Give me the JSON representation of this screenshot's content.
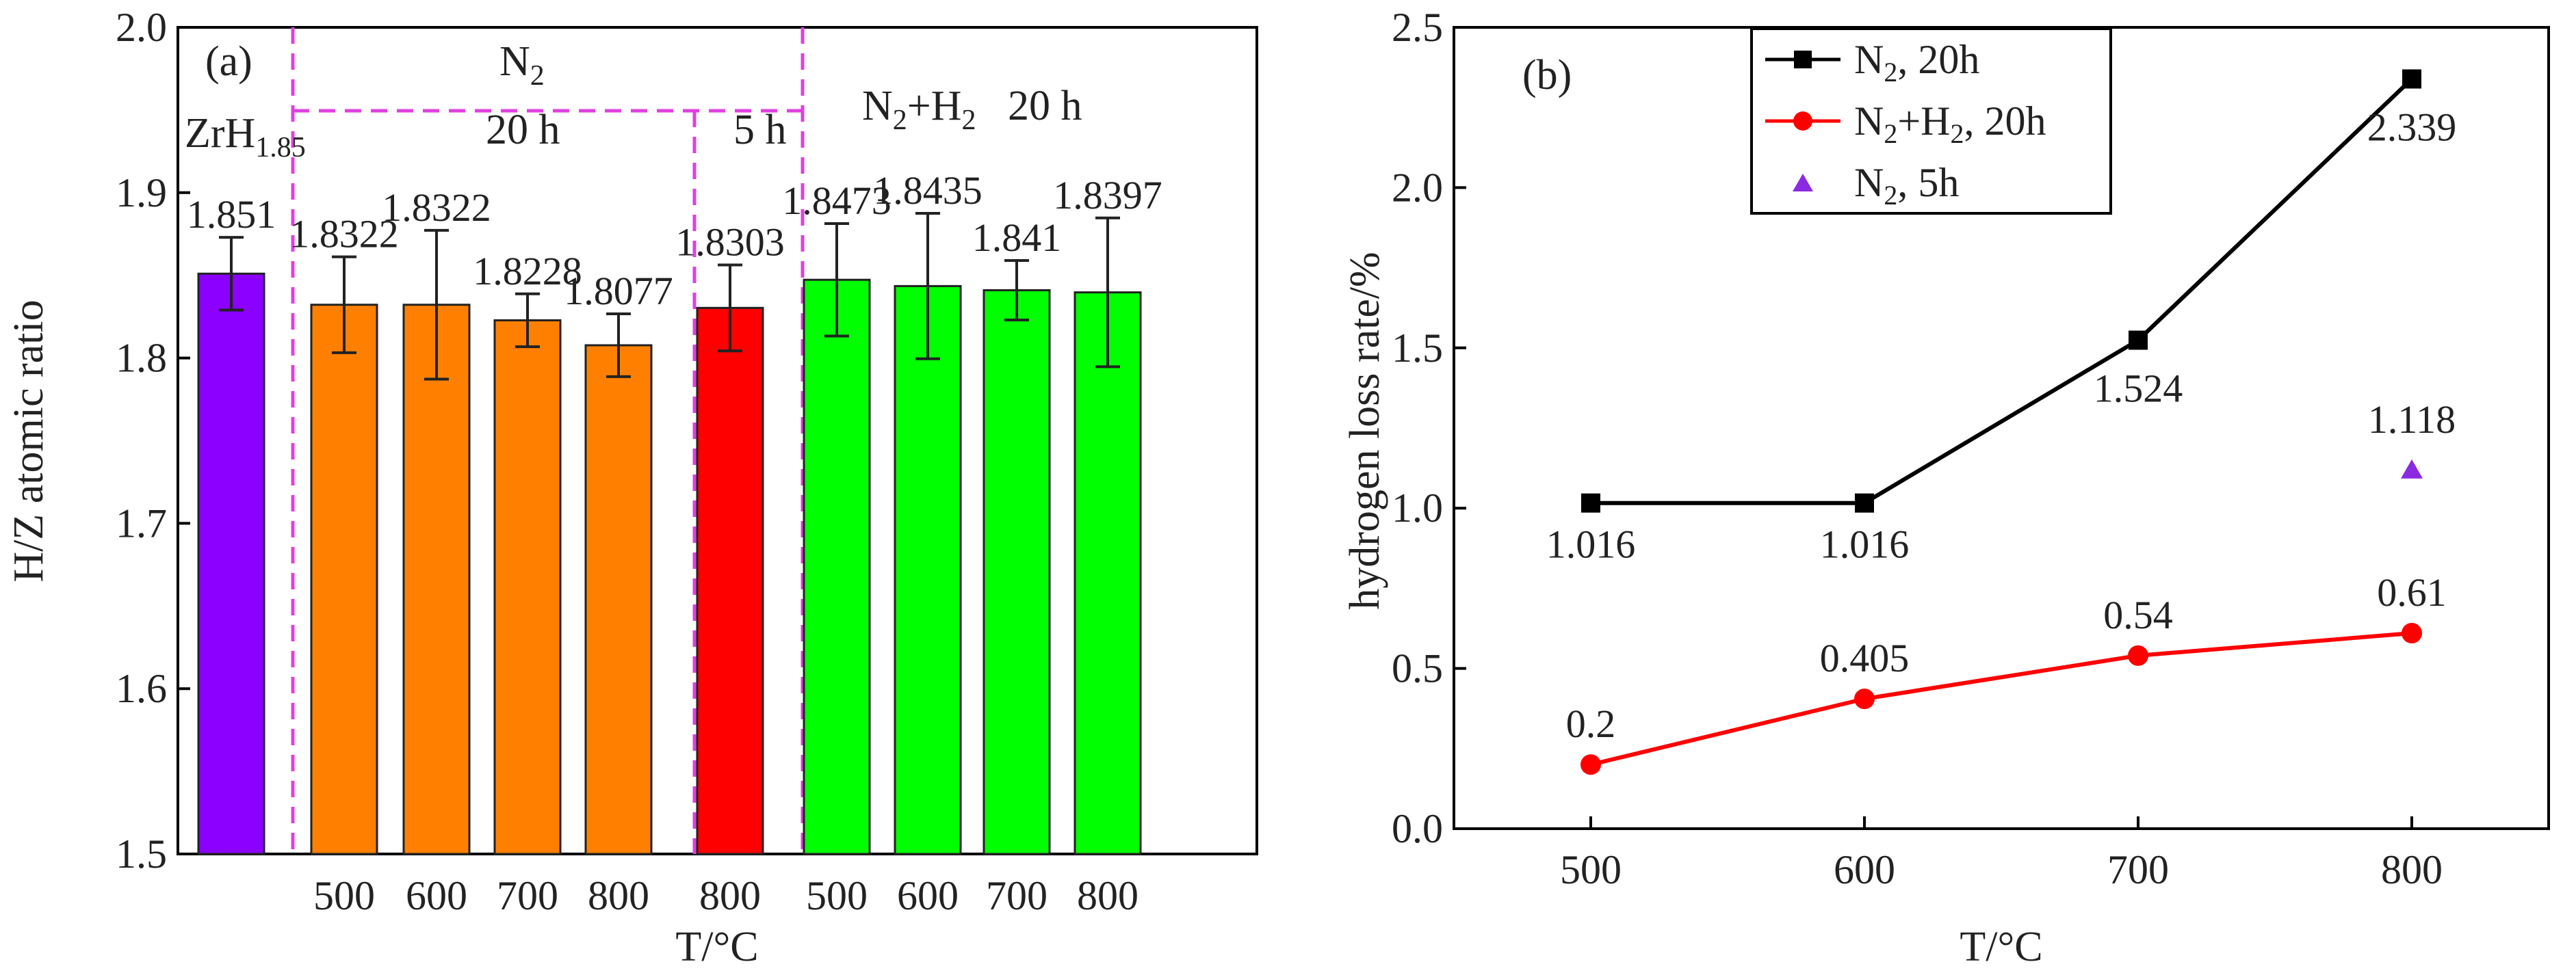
{
  "chart_data": [
    {
      "type": "bar",
      "panel_label": "(a)",
      "ylabel": "H/Z atomic ratio",
      "xlabel": "T/°C",
      "ylim": [
        1.5,
        2.0
      ],
      "yticks": [
        "1.5",
        "1.6",
        "1.7",
        "1.8",
        "1.9",
        "2.0"
      ],
      "group_labels": {
        "n2": {
          "base": "N",
          "sub": "2",
          "post": ""
        },
        "n2_20h": "20 h",
        "n2_5h": "5 h",
        "n2h2": {
          "a": "N",
          "s1": "2",
          "b": "+H",
          "s2": "2",
          "c": "   20 h"
        },
        "ref": {
          "base": "ZrH",
          "sub": "1.85"
        }
      },
      "bars": [
        {
          "category": "",
          "value": 1.851,
          "label": "1.851",
          "err": 0.022,
          "color": "#8B00FF"
        },
        {
          "category": "500",
          "value": 1.8322,
          "label": "1.8322",
          "err": 0.029,
          "color": "#FF8000"
        },
        {
          "category": "600",
          "value": 1.8322,
          "label": "1.8322",
          "err": 0.045,
          "color": "#FF8000"
        },
        {
          "category": "700",
          "value": 1.8228,
          "label": "1.8228",
          "err": 0.016,
          "color": "#FF8000"
        },
        {
          "category": "800",
          "value": 1.8077,
          "label": "1.8077",
          "err": 0.019,
          "color": "#FF8000"
        },
        {
          "category": "800",
          "value": 1.8303,
          "label": "1.8303",
          "err": 0.026,
          "color": "#FF0000"
        },
        {
          "category": "500",
          "value": 1.8473,
          "label": "1.8473",
          "err": 0.034,
          "color": "#00FF00"
        },
        {
          "category": "600",
          "value": 1.8435,
          "label": "1.8435",
          "err": 0.044,
          "color": "#00FF00"
        },
        {
          "category": "700",
          "value": 1.841,
          "label": "1.841",
          "err": 0.018,
          "color": "#00FF00"
        },
        {
          "category": "800",
          "value": 1.8397,
          "label": "1.8397",
          "err": 0.045,
          "color": "#00FF00"
        }
      ],
      "divider_color": "#E040E0"
    },
    {
      "type": "line",
      "panel_label": "(b)",
      "ylabel": "hydrogen loss rate/%",
      "xlabel": "T/°C",
      "xlim": [
        450,
        850
      ],
      "ylim": [
        0.0,
        2.5
      ],
      "xticks": [
        "500",
        "600",
        "700",
        "800"
      ],
      "yticks": [
        "0.0",
        "0.5",
        "1.0",
        "1.5",
        "2.0",
        "2.5"
      ],
      "series": [
        {
          "name": "N2, 20h",
          "legend": {
            "base": "N",
            "sub": "2",
            "post": ", 20h"
          },
          "color": "#000000",
          "marker": "square",
          "x": [
            500,
            600,
            700,
            800
          ],
          "y": [
            1.016,
            1.016,
            1.524,
            2.339
          ],
          "labels": [
            "1.016",
            "1.016",
            "1.524",
            "2.339"
          ]
        },
        {
          "name": "N2+H2, 20h",
          "legend": {
            "a": "N",
            "s1": "2",
            "b": "+H",
            "s2": "2",
            "c": ", 20h"
          },
          "color": "#FF0000",
          "marker": "circle",
          "x": [
            500,
            600,
            700,
            800
          ],
          "y": [
            0.2,
            0.405,
            0.54,
            0.61
          ],
          "labels": [
            "0.2",
            "0.405",
            "0.54",
            "0.61"
          ]
        },
        {
          "name": "N2, 5h",
          "legend": {
            "base": "N",
            "sub": "2",
            "post": ", 5h"
          },
          "color": "#8A2BE2",
          "marker": "triangle",
          "x": [
            800
          ],
          "y": [
            1.118
          ],
          "labels": [
            "1.118"
          ]
        }
      ],
      "legend_position": "top-left"
    }
  ]
}
